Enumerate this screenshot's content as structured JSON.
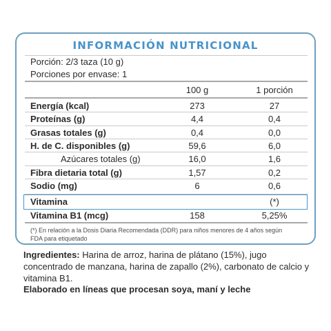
{
  "label": {
    "title": "INFORMACIÓN NUTRICIONAL",
    "portion_label": "Porción:",
    "portion_value": "2/3 taza  (10 g)",
    "servings_label": "Porciones por envase:",
    "servings_value": "1",
    "columns": [
      "100 g",
      "1 porción"
    ],
    "rows": [
      {
        "name": "Energía (kcal)",
        "v100": "273",
        "vportion": "27",
        "bold": true
      },
      {
        "name": "Proteínas (g)",
        "v100": "4,4",
        "vportion": "0,4",
        "bold": true
      },
      {
        "name": "Grasas totales (g)",
        "v100": "0,4",
        "vportion": "0,0",
        "bold": true
      },
      {
        "name": "H. de C. disponibles (g)",
        "v100": "59,6",
        "vportion": "6,0",
        "bold": true
      },
      {
        "name": "Azúcares totales (g)",
        "v100": "16,0",
        "vportion": "1,6",
        "bold": false
      },
      {
        "name": "Fibra dietaria total (g)",
        "v100": "1,57",
        "vportion": "0,2",
        "bold": true
      },
      {
        "name": "Sodio (mg)",
        "v100": "6",
        "vportion": "0,6",
        "bold": true
      }
    ],
    "vitamin_header": {
      "name": "Vitamina",
      "note": "(*)"
    },
    "vitamin_row": {
      "name": "Vitamina B1 (mcg)",
      "v100": "158",
      "vportion": "5,25%"
    },
    "footnote": "(*) En relación a la Dosis Diaria Recomendada (DDR) para niños menores de 4 años según FDA para etiquetado"
  },
  "ingredients": {
    "label": "Ingredientes:",
    "text": " Harina de arroz, harina de plátano (15%), jugo concentrado de manzana, harina de zapallo (2%), carbonato de calcio y vitamina B1."
  },
  "processing_note": "Elaborado en líneas que procesan soya, maní y leche"
}
